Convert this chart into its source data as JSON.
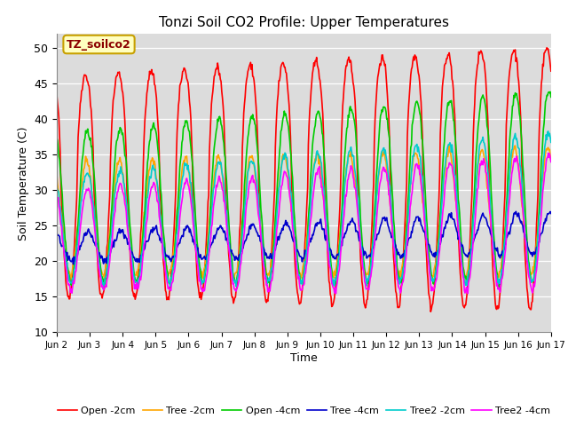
{
  "title": "Tonzi Soil CO2 Profile: Upper Temperatures",
  "ylabel": "Soil Temperature (C)",
  "xlabel": "Time",
  "ylim": [
    10,
    52
  ],
  "yticks": [
    10,
    15,
    20,
    25,
    30,
    35,
    40,
    45,
    50
  ],
  "annotation_text": "TZ_soilco2",
  "annotation_box_color": "#FFFFC0",
  "annotation_border_color": "#C8A000",
  "bg_color": "#DCDCDC",
  "series": {
    "Open -2cm": {
      "color": "#FF0000",
      "lw": 1.2
    },
    "Tree -2cm": {
      "color": "#FFA500",
      "lw": 1.2
    },
    "Open -4cm": {
      "color": "#00CC00",
      "lw": 1.2
    },
    "Tree -4cm": {
      "color": "#0000CC",
      "lw": 1.2
    },
    "Tree2 -2cm": {
      "color": "#00CCCC",
      "lw": 1.2
    },
    "Tree2 -4cm": {
      "color": "#FF00FF",
      "lw": 1.2
    }
  },
  "xtick_labels": [
    "Jun 2",
    "Jun 3",
    "Jun 4",
    "Jun 5",
    "Jun 6",
    "Jun 7",
    "Jun 8",
    "Jun 9",
    "Jun 10",
    "Jun 11",
    "Jun 12",
    "Jun 13",
    "Jun 14",
    "Jun 15",
    "Jun 16",
    "Jun 17"
  ],
  "n_days": 15,
  "pts_per_day": 48
}
